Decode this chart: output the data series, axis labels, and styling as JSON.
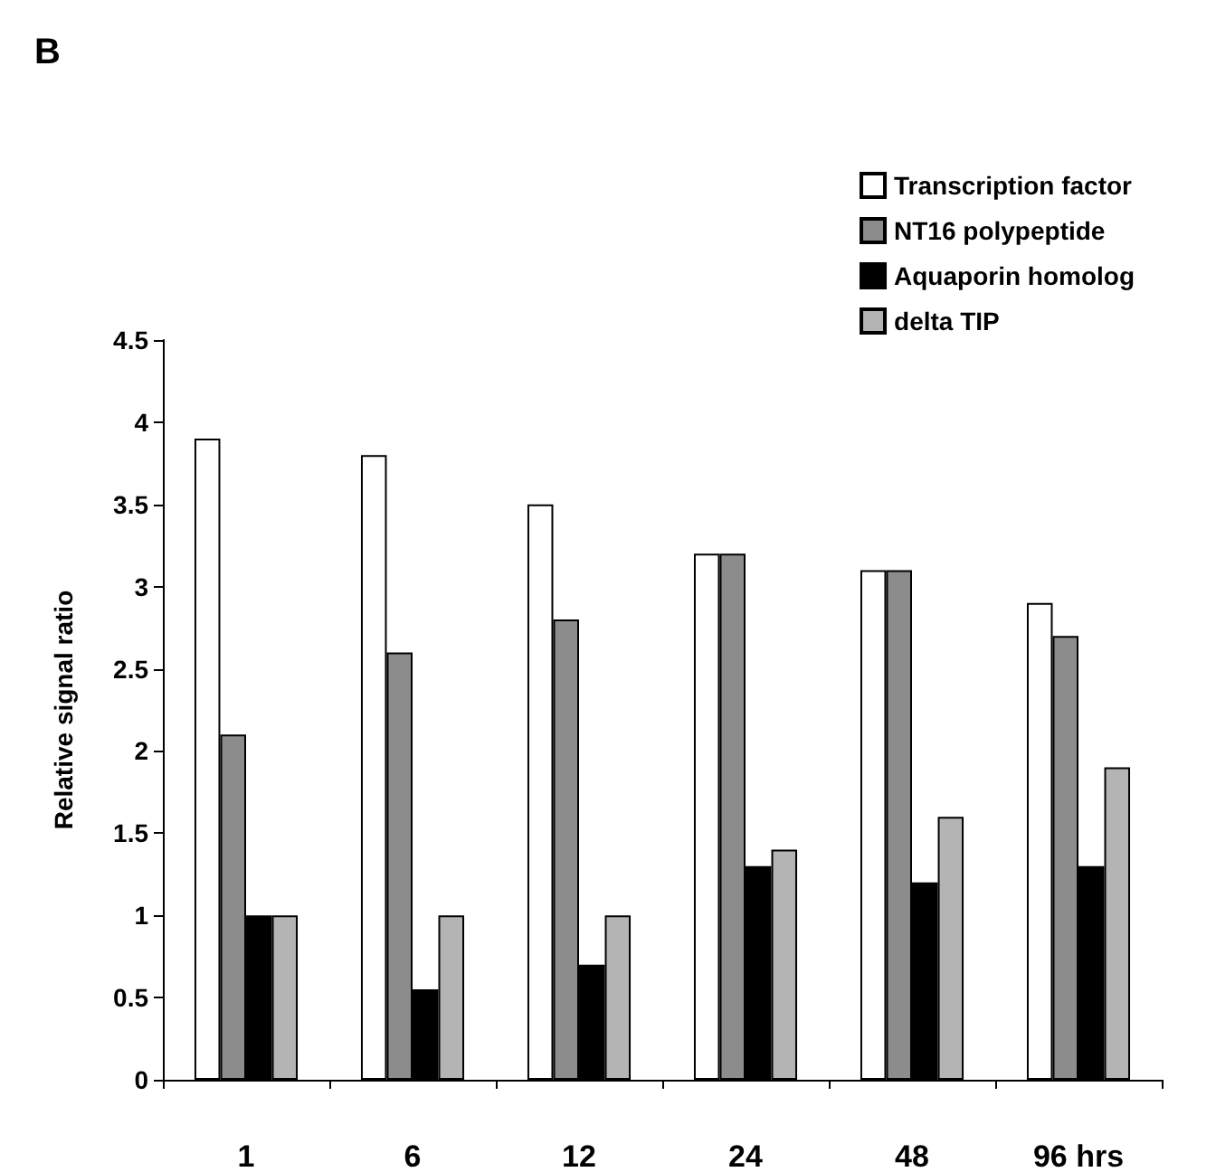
{
  "chart_data": {
    "type": "bar",
    "title": "B",
    "ylabel": "Relative signal ratio",
    "categories": [
      "1",
      "6",
      "12",
      "24",
      "48",
      "96 hrs"
    ],
    "series": [
      {
        "name": "Transcription factor",
        "color": "#ffffff",
        "values": [
          3.9,
          3.8,
          3.5,
          3.2,
          3.1,
          2.9
        ]
      },
      {
        "name": "NT16 polypeptide",
        "color": "#8c8c8c",
        "values": [
          2.1,
          2.6,
          2.8,
          3.2,
          3.1,
          2.7
        ]
      },
      {
        "name": "Aquaporin homolog",
        "color": "#000000",
        "values": [
          1.0,
          0.55,
          0.7,
          1.3,
          1.2,
          1.3
        ]
      },
      {
        "name": "delta TIP",
        "color": "#b4b4b4",
        "values": [
          1.0,
          1.0,
          1.0,
          1.4,
          1.6,
          1.9
        ]
      }
    ],
    "ylim": [
      0,
      4.5
    ],
    "yticks": [
      0,
      0.5,
      1,
      1.5,
      2,
      2.5,
      3,
      3.5,
      4,
      4.5
    ],
    "grid": false,
    "legend": "top right"
  }
}
